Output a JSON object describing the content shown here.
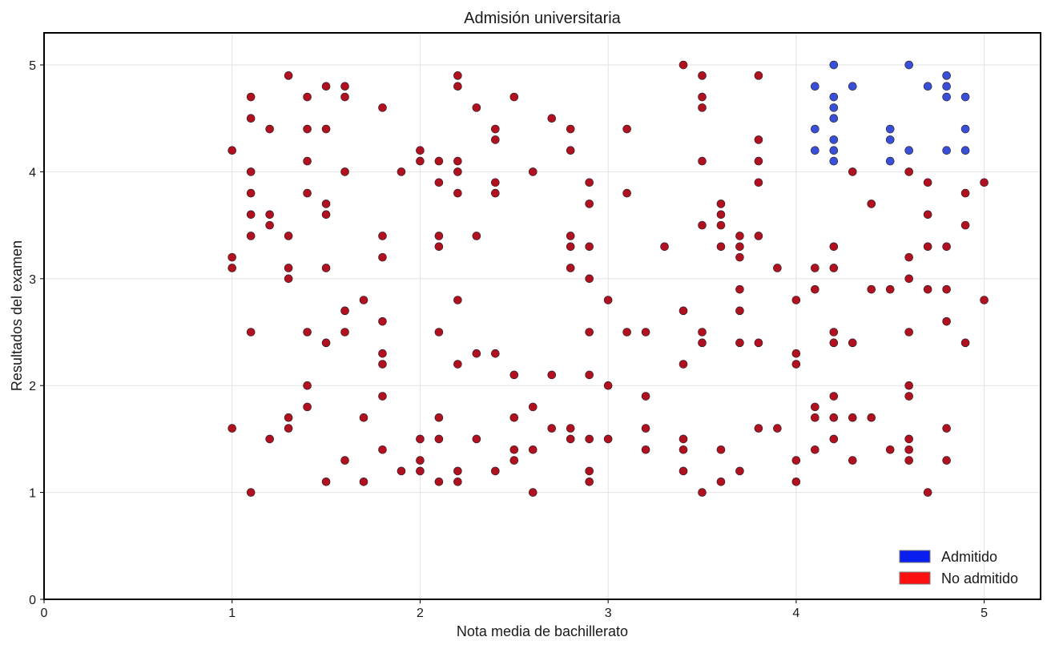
{
  "chart_data": {
    "type": "scatter",
    "title": "Admisión universitaria",
    "xlabel": "Nota media de bachillerato",
    "ylabel": "Resultados del examen",
    "xlim": [
      0,
      5.3
    ],
    "ylim": [
      0,
      5.3
    ],
    "xticks": [
      0,
      1,
      2,
      3,
      4,
      5
    ],
    "yticks": [
      0,
      1,
      2,
      3,
      4,
      5
    ],
    "grid": true,
    "legend_position": "bottom-right",
    "series": [
      {
        "name": "Admitido",
        "color": "#3a4fd8",
        "legend_color": "#0a1ef0",
        "points": [
          [
            4.1,
            4.8
          ],
          [
            4.1,
            4.4
          ],
          [
            4.1,
            4.2
          ],
          [
            4.2,
            5.0
          ],
          [
            4.2,
            4.7
          ],
          [
            4.2,
            4.6
          ],
          [
            4.2,
            4.5
          ],
          [
            4.2,
            4.3
          ],
          [
            4.2,
            4.2
          ],
          [
            4.2,
            4.1
          ],
          [
            4.3,
            4.8
          ],
          [
            4.5,
            4.4
          ],
          [
            4.5,
            4.3
          ],
          [
            4.5,
            4.1
          ],
          [
            4.6,
            5.0
          ],
          [
            4.6,
            4.2
          ],
          [
            4.7,
            4.8
          ],
          [
            4.8,
            4.9
          ],
          [
            4.8,
            4.8
          ],
          [
            4.8,
            4.7
          ],
          [
            4.8,
            4.2
          ],
          [
            4.9,
            4.7
          ],
          [
            4.9,
            4.4
          ],
          [
            4.9,
            4.2
          ]
        ]
      },
      {
        "name": "No admitido",
        "color": "#b01020",
        "legend_color": "#ff1010",
        "points": [
          [
            1.0,
            4.2
          ],
          [
            1.0,
            3.2
          ],
          [
            1.0,
            3.1
          ],
          [
            1.0,
            1.6
          ],
          [
            1.1,
            4.7
          ],
          [
            1.1,
            4.5
          ],
          [
            1.1,
            4.0
          ],
          [
            1.1,
            3.8
          ],
          [
            1.1,
            3.6
          ],
          [
            1.1,
            3.4
          ],
          [
            1.1,
            2.5
          ],
          [
            1.1,
            1.0
          ],
          [
            1.2,
            4.4
          ],
          [
            1.2,
            3.6
          ],
          [
            1.2,
            3.5
          ],
          [
            1.2,
            1.5
          ],
          [
            1.3,
            4.9
          ],
          [
            1.3,
            3.4
          ],
          [
            1.3,
            3.1
          ],
          [
            1.3,
            3.0
          ],
          [
            1.3,
            1.7
          ],
          [
            1.3,
            1.6
          ],
          [
            1.4,
            4.7
          ],
          [
            1.4,
            4.4
          ],
          [
            1.4,
            4.1
          ],
          [
            1.4,
            3.8
          ],
          [
            1.4,
            2.5
          ],
          [
            1.4,
            2.0
          ],
          [
            1.4,
            1.8
          ],
          [
            1.5,
            4.8
          ],
          [
            1.5,
            4.4
          ],
          [
            1.5,
            3.7
          ],
          [
            1.5,
            3.6
          ],
          [
            1.5,
            3.1
          ],
          [
            1.5,
            2.4
          ],
          [
            1.5,
            1.1
          ],
          [
            1.6,
            4.8
          ],
          [
            1.6,
            4.7
          ],
          [
            1.6,
            4.0
          ],
          [
            1.6,
            2.7
          ],
          [
            1.6,
            2.5
          ],
          [
            1.6,
            1.3
          ],
          [
            1.7,
            2.8
          ],
          [
            1.7,
            1.7
          ],
          [
            1.7,
            1.1
          ],
          [
            1.8,
            4.6
          ],
          [
            1.8,
            3.4
          ],
          [
            1.8,
            3.2
          ],
          [
            1.8,
            2.6
          ],
          [
            1.8,
            2.3
          ],
          [
            1.8,
            2.2
          ],
          [
            1.8,
            1.9
          ],
          [
            1.8,
            1.4
          ],
          [
            1.9,
            4.0
          ],
          [
            1.9,
            1.2
          ],
          [
            2.0,
            4.2
          ],
          [
            2.0,
            4.1
          ],
          [
            2.0,
            1.5
          ],
          [
            2.0,
            1.3
          ],
          [
            2.0,
            1.2
          ],
          [
            2.1,
            4.1
          ],
          [
            2.1,
            3.9
          ],
          [
            2.1,
            3.4
          ],
          [
            2.1,
            3.3
          ],
          [
            2.1,
            2.5
          ],
          [
            2.1,
            1.7
          ],
          [
            2.1,
            1.5
          ],
          [
            2.1,
            1.1
          ],
          [
            2.2,
            4.9
          ],
          [
            2.2,
            4.8
          ],
          [
            2.2,
            4.1
          ],
          [
            2.2,
            4.0
          ],
          [
            2.2,
            3.8
          ],
          [
            2.2,
            2.8
          ],
          [
            2.2,
            2.2
          ],
          [
            2.2,
            1.2
          ],
          [
            2.2,
            1.1
          ],
          [
            2.3,
            4.6
          ],
          [
            2.3,
            3.4
          ],
          [
            2.3,
            2.3
          ],
          [
            2.3,
            1.5
          ],
          [
            2.4,
            4.4
          ],
          [
            2.4,
            4.3
          ],
          [
            2.4,
            3.9
          ],
          [
            2.4,
            3.8
          ],
          [
            2.4,
            2.3
          ],
          [
            2.4,
            1.2
          ],
          [
            2.5,
            4.7
          ],
          [
            2.5,
            2.1
          ],
          [
            2.5,
            1.7
          ],
          [
            2.5,
            1.4
          ],
          [
            2.5,
            1.3
          ],
          [
            2.6,
            4.0
          ],
          [
            2.6,
            1.8
          ],
          [
            2.6,
            1.4
          ],
          [
            2.6,
            1.0
          ],
          [
            2.7,
            4.5
          ],
          [
            2.7,
            2.1
          ],
          [
            2.7,
            1.6
          ],
          [
            2.8,
            4.4
          ],
          [
            2.8,
            4.2
          ],
          [
            2.8,
            3.4
          ],
          [
            2.8,
            3.3
          ],
          [
            2.8,
            3.1
          ],
          [
            2.8,
            1.6
          ],
          [
            2.8,
            1.5
          ],
          [
            2.9,
            3.9
          ],
          [
            2.9,
            3.7
          ],
          [
            2.9,
            3.3
          ],
          [
            2.9,
            3.0
          ],
          [
            2.9,
            2.5
          ],
          [
            2.9,
            2.1
          ],
          [
            2.9,
            1.5
          ],
          [
            2.9,
            1.2
          ],
          [
            2.9,
            1.1
          ],
          [
            3.0,
            2.8
          ],
          [
            3.0,
            2.0
          ],
          [
            3.0,
            1.5
          ],
          [
            3.1,
            4.4
          ],
          [
            3.1,
            3.8
          ],
          [
            3.1,
            2.5
          ],
          [
            3.2,
            2.5
          ],
          [
            3.2,
            1.9
          ],
          [
            3.2,
            1.6
          ],
          [
            3.2,
            1.4
          ],
          [
            3.3,
            3.3
          ],
          [
            3.4,
            5.0
          ],
          [
            3.4,
            2.7
          ],
          [
            3.4,
            2.2
          ],
          [
            3.4,
            1.5
          ],
          [
            3.4,
            1.4
          ],
          [
            3.4,
            1.2
          ],
          [
            3.5,
            4.9
          ],
          [
            3.5,
            4.7
          ],
          [
            3.5,
            4.6
          ],
          [
            3.5,
            4.1
          ],
          [
            3.5,
            3.5
          ],
          [
            3.5,
            2.5
          ],
          [
            3.5,
            2.4
          ],
          [
            3.5,
            1.0
          ],
          [
            3.6,
            3.7
          ],
          [
            3.6,
            3.6
          ],
          [
            3.6,
            3.5
          ],
          [
            3.6,
            3.3
          ],
          [
            3.6,
            1.4
          ],
          [
            3.6,
            1.1
          ],
          [
            3.7,
            3.4
          ],
          [
            3.7,
            3.3
          ],
          [
            3.7,
            3.2
          ],
          [
            3.7,
            2.9
          ],
          [
            3.7,
            2.7
          ],
          [
            3.7,
            2.4
          ],
          [
            3.7,
            1.2
          ],
          [
            3.8,
            4.9
          ],
          [
            3.8,
            4.3
          ],
          [
            3.8,
            4.1
          ],
          [
            3.8,
            3.9
          ],
          [
            3.8,
            3.4
          ],
          [
            3.8,
            2.4
          ],
          [
            3.8,
            1.6
          ],
          [
            3.9,
            3.1
          ],
          [
            3.9,
            1.6
          ],
          [
            4.0,
            2.8
          ],
          [
            4.0,
            2.3
          ],
          [
            4.0,
            2.2
          ],
          [
            4.0,
            1.3
          ],
          [
            4.0,
            1.1
          ],
          [
            4.1,
            3.1
          ],
          [
            4.1,
            2.9
          ],
          [
            4.1,
            1.8
          ],
          [
            4.1,
            1.7
          ],
          [
            4.1,
            1.4
          ],
          [
            4.2,
            3.3
          ],
          [
            4.2,
            3.1
          ],
          [
            4.2,
            2.5
          ],
          [
            4.2,
            2.4
          ],
          [
            4.2,
            1.9
          ],
          [
            4.2,
            1.7
          ],
          [
            4.2,
            1.5
          ],
          [
            4.3,
            4.0
          ],
          [
            4.3,
            2.4
          ],
          [
            4.3,
            1.7
          ],
          [
            4.3,
            1.3
          ],
          [
            4.4,
            3.7
          ],
          [
            4.4,
            2.9
          ],
          [
            4.4,
            1.7
          ],
          [
            4.5,
            2.9
          ],
          [
            4.5,
            1.4
          ],
          [
            4.6,
            4.0
          ],
          [
            4.6,
            3.2
          ],
          [
            4.6,
            3.0
          ],
          [
            4.6,
            2.5
          ],
          [
            4.6,
            2.0
          ],
          [
            4.6,
            1.9
          ],
          [
            4.6,
            1.5
          ],
          [
            4.6,
            1.4
          ],
          [
            4.6,
            1.3
          ],
          [
            4.7,
            3.9
          ],
          [
            4.7,
            3.6
          ],
          [
            4.7,
            3.3
          ],
          [
            4.7,
            2.9
          ],
          [
            4.7,
            1.0
          ],
          [
            4.8,
            3.3
          ],
          [
            4.8,
            2.9
          ],
          [
            4.8,
            2.6
          ],
          [
            4.8,
            1.6
          ],
          [
            4.8,
            1.3
          ],
          [
            4.9,
            3.8
          ],
          [
            4.9,
            3.5
          ],
          [
            4.9,
            2.4
          ],
          [
            5.0,
            3.9
          ],
          [
            5.0,
            2.8
          ]
        ]
      }
    ]
  }
}
